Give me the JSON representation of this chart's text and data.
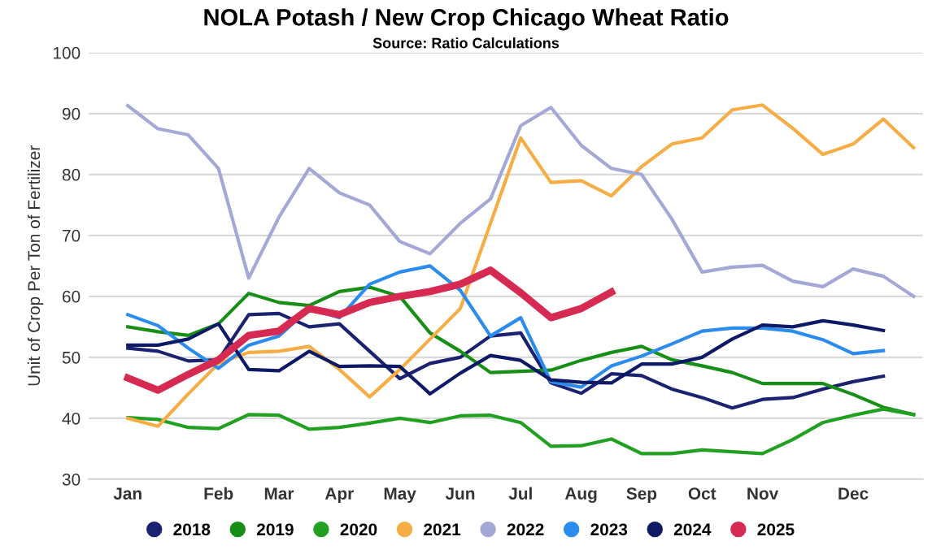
{
  "chart_data": {
    "type": "line",
    "title": "NOLA Potash / New Crop Chicago Wheat Ratio",
    "subtitle": "Source: Ratio Calculations",
    "ylabel": "Unit of Crop Per Ton of Fertilizer",
    "categories": [
      "Jan",
      null,
      null,
      "Feb",
      null,
      "Mar",
      null,
      "Apr",
      null,
      "May",
      null,
      "Jun",
      null,
      "Jul",
      null,
      "Aug",
      null,
      "Sep",
      null,
      "Oct",
      null,
      "Nov",
      null,
      null,
      "Dec",
      null,
      null
    ],
    "ylim": [
      30,
      100
    ],
    "yticks": [
      30,
      40,
      50,
      60,
      70,
      80,
      90,
      100
    ],
    "grid": "y",
    "legend": "bottom",
    "marker": "none",
    "line_style": "solid",
    "series": [
      {
        "name": "2018",
        "color": "#1b2370",
        "values": [
          51.5,
          51,
          49.4,
          49.6,
          57,
          57.2,
          55,
          55.5,
          51,
          46.5,
          49,
          50,
          53.5,
          54,
          45.8,
          44.1,
          47.3,
          47,
          44.8,
          43.4,
          41.7,
          43.1,
          43.4,
          44.8,
          46,
          46.9,
          null
        ]
      },
      {
        "name": "2019",
        "color": "#178f17",
        "values": [
          55,
          54.2,
          53.6,
          55.5,
          60.5,
          59,
          58.5,
          60.8,
          61.5,
          60,
          54,
          51,
          47.5,
          47.7,
          47.9,
          49.5,
          50.8,
          51.8,
          49.6,
          48.6,
          47.5,
          45.7,
          45.7,
          45.7,
          43.9,
          41.8,
          40.6
        ]
      },
      {
        "name": "2020",
        "color": "#22a022",
        "values": [
          40.1,
          39.8,
          38.5,
          38.3,
          40.6,
          40.5,
          38.2,
          38.5,
          39.2,
          40,
          39.3,
          40.4,
          40.5,
          39.3,
          35.4,
          35.5,
          36.6,
          34.2,
          34.2,
          34.8,
          34.5,
          34.2,
          36.5,
          39.3,
          40.5,
          41.5,
          40.6
        ]
      },
      {
        "name": "2021",
        "color": "#f6ad45",
        "values": [
          40,
          38.7,
          44,
          49,
          50.8,
          51,
          51.8,
          48,
          43.5,
          48,
          53,
          58,
          72,
          86,
          78.7,
          79,
          76.5,
          81.3,
          85,
          86,
          90.6,
          91.4,
          87.6,
          83.3,
          85,
          89.1,
          84.4
        ]
      },
      {
        "name": "2022",
        "color": "#a4a8d6",
        "values": [
          91.3,
          87.5,
          86.5,
          81,
          63,
          73,
          81,
          77,
          75,
          69,
          67,
          72,
          76,
          88,
          91,
          84.8,
          81,
          80,
          72.7,
          64,
          64.8,
          65.1,
          62.5,
          61.6,
          64.5,
          63.3,
          60
        ]
      },
      {
        "name": "2023",
        "color": "#2b8cee",
        "values": [
          57,
          55.2,
          51.5,
          48.2,
          52,
          53.5,
          58,
          56.5,
          62,
          64,
          65,
          61,
          53.5,
          56.5,
          46,
          45.1,
          48.6,
          50.2,
          52.2,
          54.3,
          54.8,
          54.8,
          54.3,
          52.9,
          50.6,
          51.1,
          null
        ]
      },
      {
        "name": "2024",
        "color": "#0f1a66",
        "values": [
          52,
          52,
          53,
          55.5,
          48,
          47.8,
          51,
          48.5,
          48.6,
          48.5,
          44,
          47.4,
          50.3,
          49.5,
          46.3,
          45.9,
          45.8,
          48.9,
          48.9,
          50,
          53,
          55.3,
          55,
          56,
          55.3,
          54.4,
          null
        ]
      },
      {
        "name": "2025",
        "color": "#d72a52",
        "values": [
          46.6,
          44.6,
          47.2,
          49.6,
          53.6,
          54.3,
          58,
          57,
          59,
          60,
          60.8,
          62,
          64.3,
          60.6,
          56.5,
          58,
          60.7,
          null,
          null,
          null,
          null,
          null,
          null,
          null,
          null,
          null,
          null
        ]
      }
    ]
  }
}
